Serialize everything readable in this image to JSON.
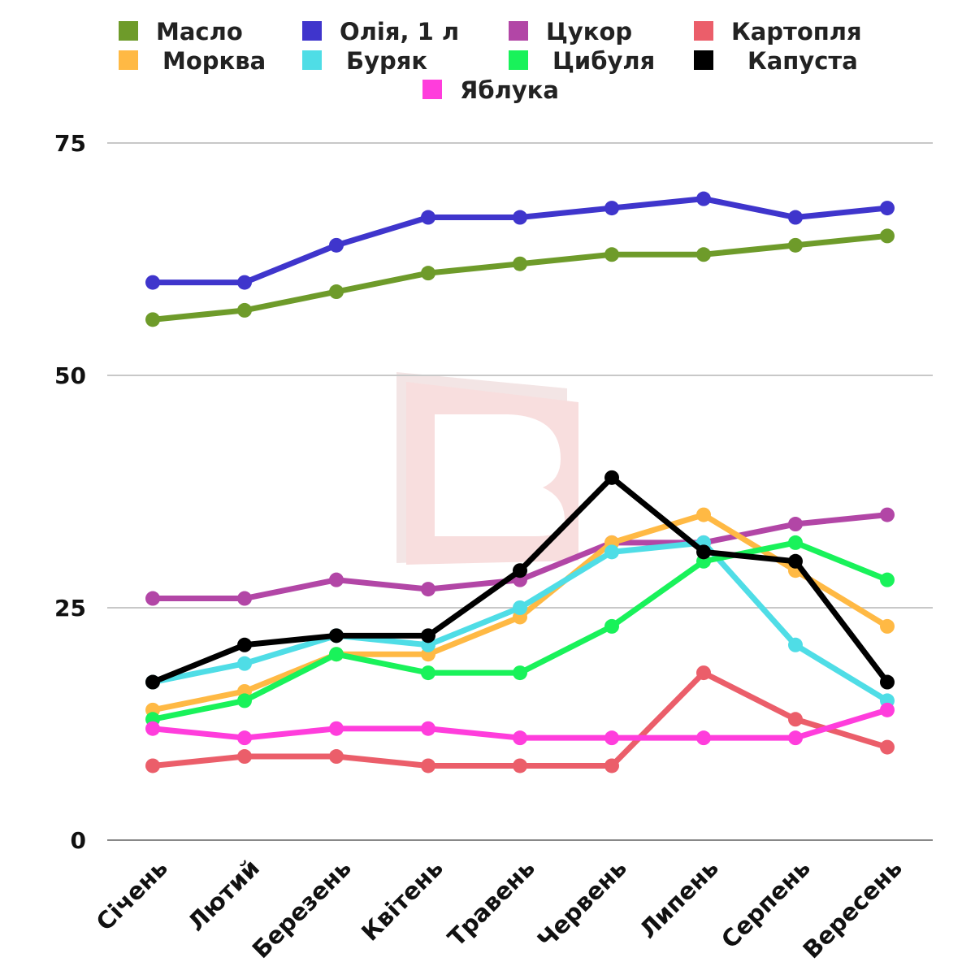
{
  "chart_data": {
    "type": "line",
    "categories": [
      "Січень",
      "Лютий",
      "Березень",
      "Квітень",
      "Травень",
      "Червень",
      "Липень",
      "Серпень",
      "Вересень"
    ],
    "ylim": [
      0,
      75
    ],
    "yticks": [
      0,
      25,
      50,
      75
    ],
    "grid": true,
    "legend_position": "top",
    "series": [
      {
        "name": "Масло",
        "color": "#6e9b2a",
        "values": [
          56,
          57,
          59,
          61,
          62,
          63,
          63,
          64,
          65
        ]
      },
      {
        "name": "Олія, 1 л",
        "color": "#3f35cc",
        "values": [
          60,
          60,
          64,
          67,
          67,
          68,
          69,
          67,
          68
        ]
      },
      {
        "name": "Цукор",
        "color": "#b246a6",
        "values": [
          26,
          26,
          28,
          27,
          28,
          32,
          32,
          34,
          35
        ]
      },
      {
        "name": "Картопля",
        "color": "#eb5e6a",
        "values": [
          8,
          9,
          9,
          8,
          8,
          8,
          18,
          13,
          10
        ]
      },
      {
        "name": "Морква",
        "color": "#ffb944",
        "values": [
          14,
          16,
          20,
          20,
          24,
          32,
          35,
          29,
          23
        ]
      },
      {
        "name": "Буряк",
        "color": "#4fdde6",
        "values": [
          17,
          19,
          22,
          21,
          25,
          31,
          32,
          21,
          15
        ]
      },
      {
        "name": "Цибуля",
        "color": "#19f25a",
        "values": [
          13,
          15,
          20,
          18,
          18,
          23,
          30,
          32,
          28
        ]
      },
      {
        "name": "Капуста",
        "color": "#000000",
        "values": [
          17,
          21,
          22,
          22,
          29,
          39,
          31,
          30,
          17
        ]
      },
      {
        "name": "Яблука",
        "color": "#ff3ddc",
        "values": [
          12,
          11,
          12,
          12,
          11,
          11,
          11,
          11,
          14
        ]
      }
    ]
  }
}
